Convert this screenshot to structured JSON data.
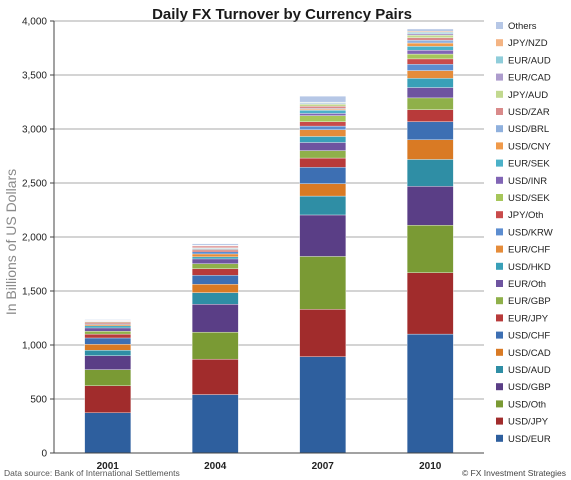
{
  "chart_data": {
    "type": "bar",
    "stacked": true,
    "title": "Daily FX Turnover by Currency Pairs",
    "ylabel": "In Billions of US Dollars",
    "ylim": [
      0,
      4000
    ],
    "yticks": [
      0,
      500,
      1000,
      1500,
      2000,
      2500,
      3000,
      3500,
      4000
    ],
    "ytick_labels": [
      "0",
      "500",
      "1,000",
      "1,500",
      "2,000",
      "2,500",
      "3,000",
      "3,500",
      "4,000"
    ],
    "grid": "horizontal",
    "legend_position": "right",
    "categories": [
      "2001",
      "2004",
      "2007",
      "2010"
    ],
    "series": [
      {
        "name": "USD/EUR",
        "color": "#2e5f9e",
        "values": [
          372,
          541,
          892,
          1101
        ]
      },
      {
        "name": "USD/JPY",
        "color": "#a12c2c",
        "values": [
          250,
          328,
          438,
          568
        ]
      },
      {
        "name": "USD/Oth",
        "color": "#7a9a34",
        "values": [
          150,
          250,
          490,
          440
        ]
      },
      {
        "name": "USD/GBP",
        "color": "#5a3e86",
        "values": [
          129,
          259,
          384,
          360
        ]
      },
      {
        "name": "USD/AUD",
        "color": "#2f8ea5",
        "values": [
          51,
          107,
          175,
          249
        ]
      },
      {
        "name": "USD/CAD",
        "color": "#d97a24",
        "values": [
          54,
          77,
          115,
          182
        ]
      },
      {
        "name": "USD/CHF",
        "color": "#3d6fb3",
        "values": [
          59,
          83,
          151,
          168
        ]
      },
      {
        "name": "EUR/JPY",
        "color": "#b83a3a",
        "values": [
          36,
          61,
          86,
          111
        ]
      },
      {
        "name": "EUR/GBP",
        "color": "#8fb04a",
        "values": [
          27,
          47,
          69,
          109
        ]
      },
      {
        "name": "EUR/Oth",
        "color": "#6e54a0",
        "values": [
          30,
          44,
          75,
          96
        ]
      },
      {
        "name": "USD/HKD",
        "color": "#39a0b8",
        "values": [
          19,
          19,
          56,
          85
        ]
      },
      {
        "name": "EUR/CHF",
        "color": "#e58c3a",
        "values": [
          13,
          27,
          62,
          72
        ]
      },
      {
        "name": "USD/KRW",
        "color": "#5c8dd0",
        "values": [
          8,
          20,
          34,
          58
        ]
      },
      {
        "name": "JPY/Oth",
        "color": "#c94b4b",
        "values": [
          11,
          14,
          40,
          50
        ]
      },
      {
        "name": "USD/SEK",
        "color": "#a6c65a",
        "values": [
          6,
          7,
          57,
          45
        ]
      },
      {
        "name": "USD/INR",
        "color": "#8165b5",
        "values": [
          3,
          6,
          20,
          36
        ]
      },
      {
        "name": "EUR/SEK",
        "color": "#4bb1c8",
        "values": [
          3,
          7,
          30,
          35
        ]
      },
      {
        "name": "USD/CNY",
        "color": "#f09a4a",
        "values": [
          1,
          1,
          9,
          31
        ]
      },
      {
        "name": "USD/BRL",
        "color": "#8fb0dd",
        "values": [
          3,
          3,
          7,
          25
        ]
      },
      {
        "name": "USD/ZAR",
        "color": "#d98a8a",
        "values": [
          5,
          16,
          20,
          24
        ]
      },
      {
        "name": "JPY/AUD",
        "color": "#c2d98f",
        "values": [
          1,
          3,
          19,
          24
        ]
      },
      {
        "name": "EUR/CAD",
        "color": "#ad9ccd",
        "values": [
          1,
          2,
          7,
          14
        ]
      },
      {
        "name": "EUR/AUD",
        "color": "#8fcdda",
        "values": [
          1,
          2,
          9,
          12
        ]
      },
      {
        "name": "JPY/NZD",
        "color": "#f4b483",
        "values": [
          0,
          1,
          4,
          9
        ]
      },
      {
        "name": "Others",
        "color": "#b6c7e6",
        "values": [
          6,
          12,
          55,
          22
        ]
      }
    ]
  },
  "footer": {
    "source": "Data source: Bank of International Settlements",
    "credit": "© FX Investment Strategies"
  }
}
